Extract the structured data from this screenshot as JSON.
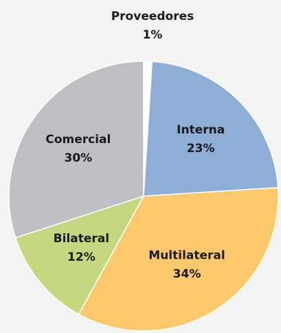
{
  "chart_data": {
    "type": "pie",
    "categories": [
      "Proveedores",
      "Interna",
      "Multilateral",
      "Bilateral",
      "Comercial"
    ],
    "values": [
      1,
      23,
      34,
      12,
      30
    ],
    "value_labels": [
      "1%",
      "23%",
      "34%",
      "12%",
      "30%"
    ],
    "colors": [
      "#ffffff",
      "#8eaed6",
      "#fbc96b",
      "#c4d97f",
      "#bebfc2"
    ]
  }
}
